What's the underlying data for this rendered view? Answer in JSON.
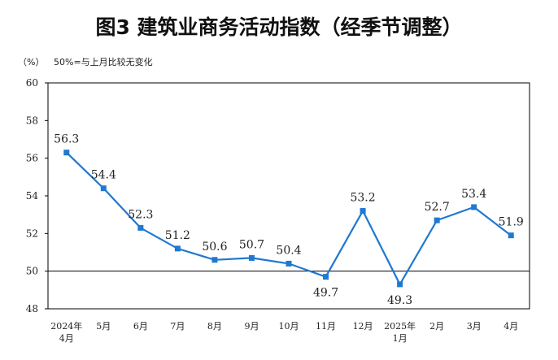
{
  "chart_data": {
    "type": "line",
    "title": "图3  建筑业商务活动指数（经季节调整）",
    "unit": "（%）",
    "note": "50%=与上月比较无变化",
    "categories": [
      [
        "2024年",
        "4月"
      ],
      [
        "5月"
      ],
      [
        "6月"
      ],
      [
        "7月"
      ],
      [
        "8月"
      ],
      [
        "9月"
      ],
      [
        "10月"
      ],
      [
        "11月"
      ],
      [
        "12月"
      ],
      [
        "2025年",
        "1月"
      ],
      [
        "2月"
      ],
      [
        "3月"
      ],
      [
        "4月"
      ]
    ],
    "series": [
      {
        "values": [
          56.3,
          54.4,
          52.3,
          51.2,
          50.6,
          50.7,
          50.4,
          49.7,
          53.2,
          49.3,
          52.7,
          53.4,
          51.9
        ]
      }
    ],
    "ylim": [
      48,
      60
    ],
    "yticks": [
      "48",
      "50",
      "52",
      "54",
      "56",
      "58",
      "60"
    ],
    "reference_line": 50,
    "grid": false,
    "colors": {
      "line": "#1f78d1",
      "reference": "#000000"
    }
  }
}
